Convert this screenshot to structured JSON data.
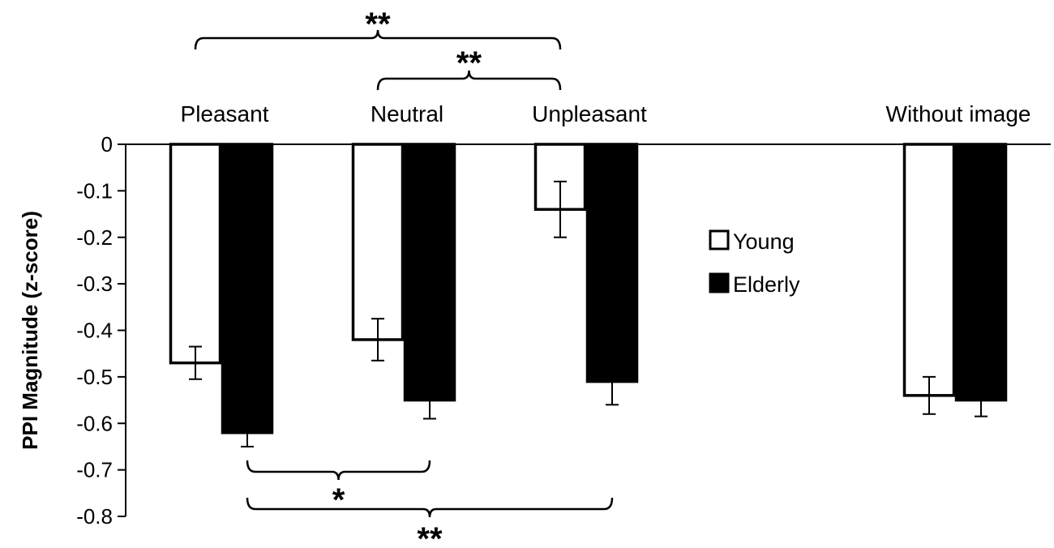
{
  "chart_data": {
    "type": "bar",
    "title": "",
    "xlabel": "",
    "ylabel": "PPI Magnitude  (z-score)",
    "ylim": [
      -0.8,
      0
    ],
    "yticks": [
      "0",
      "-0.1",
      "-0.2",
      "-0.3",
      "-0.4",
      "-0.5",
      "-0.6",
      "-0.7",
      "-0.8"
    ],
    "categories": [
      "Pleasant",
      "Neutral",
      "Unpleasant",
      "Without image"
    ],
    "series": [
      {
        "name": "Young",
        "color": "#ffffff",
        "values": [
          -0.47,
          -0.42,
          -0.14,
          -0.54
        ],
        "errors": [
          0.035,
          0.045,
          0.06,
          0.04
        ]
      },
      {
        "name": "Elderly",
        "color": "#000000",
        "values": [
          -0.62,
          -0.55,
          -0.51,
          -0.55
        ],
        "errors": [
          0.03,
          0.04,
          0.05,
          0.035
        ]
      }
    ],
    "legend": "center-right",
    "grid": false,
    "significance": [
      {
        "label": "**",
        "series": "Young",
        "from": "Pleasant",
        "to": "Unpleasant",
        "position": "above"
      },
      {
        "label": "**",
        "series": "Young",
        "from": "Neutral",
        "to": "Unpleasant",
        "position": "above"
      },
      {
        "label": "*",
        "series": "Elderly",
        "from": "Pleasant",
        "to": "Neutral",
        "position": "below"
      },
      {
        "label": "**",
        "series": "Elderly",
        "from": "Pleasant",
        "to": "Unpleasant",
        "position": "below"
      }
    ]
  }
}
